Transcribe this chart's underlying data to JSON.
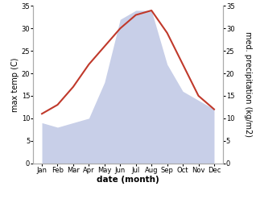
{
  "months": [
    "Jan",
    "Feb",
    "Mar",
    "Apr",
    "May",
    "Jun",
    "Jul",
    "Aug",
    "Sep",
    "Oct",
    "Nov",
    "Dec"
  ],
  "temperature": [
    11,
    13,
    17,
    22,
    26,
    30,
    33,
    34,
    29,
    22,
    15,
    12
  ],
  "precipitation": [
    9,
    8,
    9,
    10,
    18,
    32,
    34,
    34,
    22,
    16,
    14,
    12
  ],
  "temp_color": "#c0392b",
  "precip_fill_color": "#c8cfe8",
  "ylim": [
    0,
    35
  ],
  "yticks": [
    0,
    5,
    10,
    15,
    20,
    25,
    30,
    35
  ],
  "ylabel_left": "max temp (C)",
  "ylabel_right": "med. precipitation (kg/m2)",
  "xlabel": "date (month)",
  "line_width": 1.5,
  "background_color": "#ffffff",
  "spine_color": "#aaaaaa",
  "tick_label_fontsize": 6.0,
  "axis_label_fontsize": 7.0,
  "xlabel_fontsize": 7.5
}
